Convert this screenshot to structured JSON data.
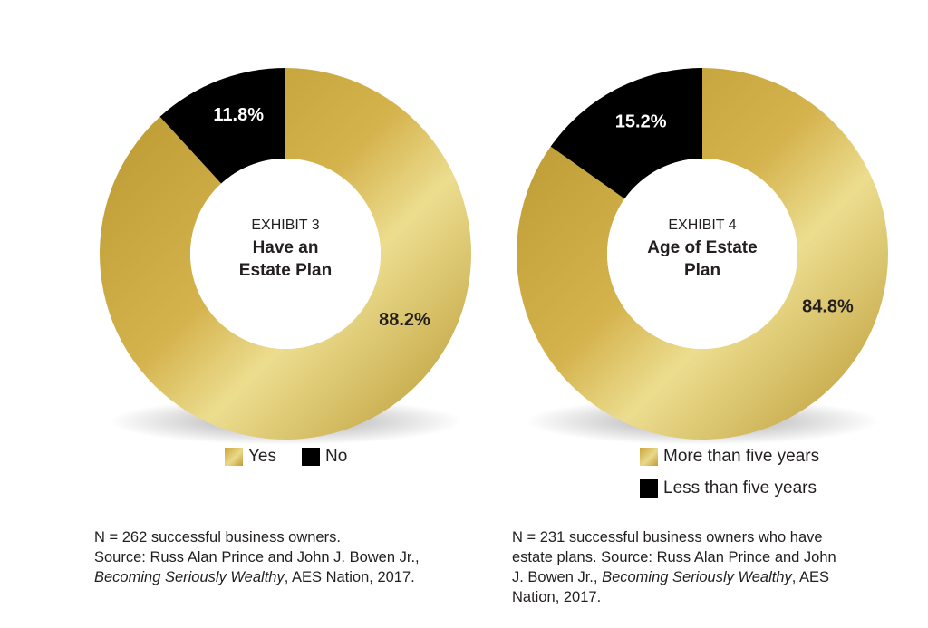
{
  "colors": {
    "gold": "#d4b24c",
    "gold_light": "#ecdd8f",
    "gold_dark": "#b8962f",
    "black": "#000000"
  },
  "chart_data": [
    {
      "type": "pie",
      "subtitle": "EXHIBIT 3",
      "title": "Have an Estate Plan",
      "title_lines": [
        "Have an",
        "Estate Plan"
      ],
      "slices": [
        {
          "label": "Yes",
          "value": 88.2,
          "display": "88.2%",
          "color": "gold"
        },
        {
          "label": "No",
          "value": 11.8,
          "display": "11.8%",
          "color": "black"
        }
      ],
      "legend": [
        "Yes",
        "No"
      ],
      "note": {
        "line1": "N = 262 successful business owners.",
        "line2": "Source: Russ Alan Prince and John J. Bowen Jr.,",
        "book": "Becoming Seriously Wealthy",
        "line3_rest": ", AES Nation, 2017."
      }
    },
    {
      "type": "pie",
      "subtitle": "EXHIBIT 4",
      "title": "Age of Estate Plan",
      "title_lines": [
        "Age of Estate",
        "Plan"
      ],
      "slices": [
        {
          "label": "More than five years",
          "value": 84.8,
          "display": "84.8%",
          "color": "gold"
        },
        {
          "label": "Less than five years",
          "value": 15.2,
          "display": "15.2%",
          "color": "black"
        }
      ],
      "legend": [
        "More than five years",
        "Less than five years"
      ],
      "note": {
        "line1": "N = 231 successful business owners who have",
        "line2": "estate plans. Source: Russ Alan Prince and John",
        "line3_pre": "J. Bowen Jr.,",
        "book": "Becoming Seriously Wealthy",
        "line3_rest": ", AES",
        "line4": "Nation, 2017."
      }
    }
  ]
}
